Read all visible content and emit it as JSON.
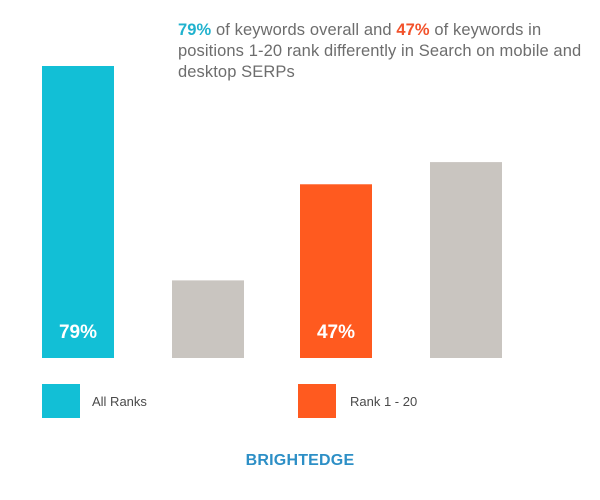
{
  "headline": {
    "highlight1": "79%",
    "text1": " of keywords overall and ",
    "highlight2": "47%",
    "text2": " of keywords in positions 1-20 rank differently in Search on mobile and desktop SERPs"
  },
  "colors": {
    "all_ranks": "#12bfd6",
    "rank_1_20": "#ff5a1f",
    "remainder": "#c9c5c0",
    "highlight_cyan": "#20b2ce",
    "highlight_orange": "#f2522b",
    "brand": "#2d8fc6"
  },
  "chart_data": {
    "type": "bar",
    "title": "79% of keywords overall and 47% of keywords in positions 1-20 rank differently in Search on mobile and desktop SERPs",
    "groups": [
      {
        "name": "All Ranks",
        "bars": [
          {
            "value": 79,
            "label": "79%",
            "color_key": "all_ranks"
          },
          {
            "value": 21,
            "label": "",
            "color_key": "remainder"
          }
        ]
      },
      {
        "name": "Rank 1 - 20",
        "bars": [
          {
            "value": 47,
            "label": "47%",
            "color_key": "rank_1_20"
          },
          {
            "value": 53,
            "label": "",
            "color_key": "remainder"
          }
        ]
      }
    ],
    "ylim": [
      0,
      79
    ],
    "grid": false,
    "legend_position": "bottom"
  },
  "legend": [
    {
      "label": "All Ranks",
      "color_key": "all_ranks"
    },
    {
      "label": "Rank 1 - 20",
      "color_key": "rank_1_20"
    }
  ],
  "brand": "BRIGHTEDGE"
}
